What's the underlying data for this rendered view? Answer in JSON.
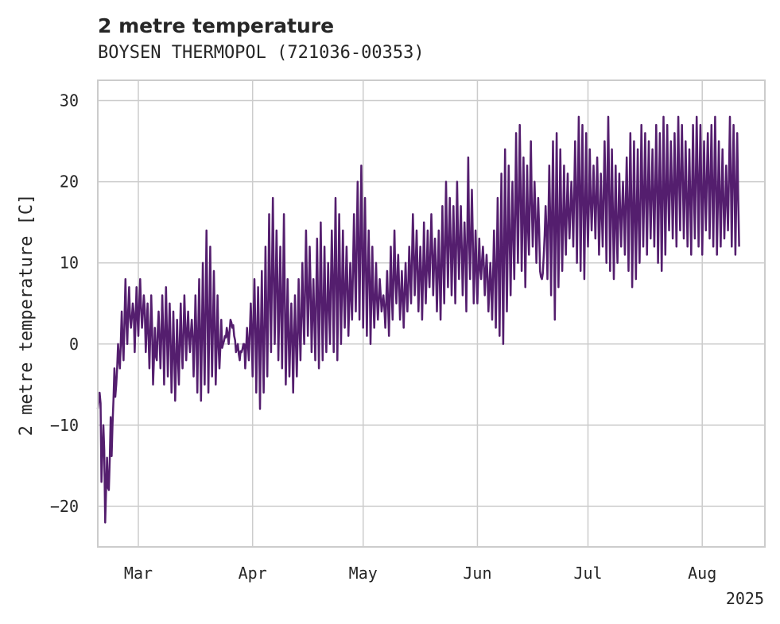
{
  "chart_data": {
    "type": "line",
    "title": "2 metre temperature",
    "subtitle": "BOYSEN THERMOPOL (721036-00353)",
    "ylabel": "2 metre temperature [C]",
    "xlabel": "",
    "ylim": [
      -25,
      32.5
    ],
    "xlim": [
      "2025-02-18",
      "2025-08-18"
    ],
    "y_ticks": [
      30,
      20,
      10,
      0,
      -10,
      -20
    ],
    "y_tick_labels": [
      "30",
      "20",
      "10",
      "0",
      "−10",
      "−20"
    ],
    "x_ticks": [
      "2025-03-01",
      "2025-04-01",
      "2025-05-01",
      "2025-06-01",
      "2025-07-01",
      "2025-08-01"
    ],
    "x_tick_labels": [
      "Mar",
      "Apr",
      "May",
      "Jun",
      "Jul",
      "Aug"
    ],
    "x_offset_label": "2025",
    "grid": true,
    "legend": "none",
    "series": [
      {
        "color": "#541e6e",
        "x": [
          "2025-02-18",
          "2025-02-19",
          "2025-02-20",
          "2025-02-21",
          "2025-02-22",
          "2025-02-23",
          "2025-02-24",
          "2025-02-25",
          "2025-02-26",
          "2025-02-27",
          "2025-02-28",
          "2025-03-01",
          "2025-03-02",
          "2025-03-03",
          "2025-03-04",
          "2025-03-05",
          "2025-03-06",
          "2025-03-07",
          "2025-03-08",
          "2025-03-09",
          "2025-03-10",
          "2025-03-11",
          "2025-03-12",
          "2025-03-13",
          "2025-03-14",
          "2025-03-15",
          "2025-03-16",
          "2025-03-17",
          "2025-03-18",
          "2025-03-19",
          "2025-03-20",
          "2025-03-21",
          "2025-03-22",
          "2025-03-23",
          "2025-03-24",
          "2025-03-25",
          "2025-03-26",
          "2025-03-27",
          "2025-03-28",
          "2025-03-29",
          "2025-03-30",
          "2025-03-31",
          "2025-04-01",
          "2025-04-02",
          "2025-04-03",
          "2025-04-04",
          "2025-04-05",
          "2025-04-06",
          "2025-04-07",
          "2025-04-08",
          "2025-04-09",
          "2025-04-10",
          "2025-04-11",
          "2025-04-12",
          "2025-04-13",
          "2025-04-14",
          "2025-04-15",
          "2025-04-16",
          "2025-04-17",
          "2025-04-18",
          "2025-04-19",
          "2025-04-20",
          "2025-04-21",
          "2025-04-22",
          "2025-04-23",
          "2025-04-24",
          "2025-04-25",
          "2025-04-26",
          "2025-04-27",
          "2025-04-28",
          "2025-04-29",
          "2025-04-30",
          "2025-05-01",
          "2025-05-02",
          "2025-05-03",
          "2025-05-04",
          "2025-05-05",
          "2025-05-06",
          "2025-05-07",
          "2025-05-08",
          "2025-05-09",
          "2025-05-10",
          "2025-05-11",
          "2025-05-12",
          "2025-05-13",
          "2025-05-14",
          "2025-05-15",
          "2025-05-16",
          "2025-05-17",
          "2025-05-18",
          "2025-05-19",
          "2025-05-20",
          "2025-05-21",
          "2025-05-22",
          "2025-05-23",
          "2025-05-24",
          "2025-05-25",
          "2025-05-26",
          "2025-05-27",
          "2025-05-28",
          "2025-05-29",
          "2025-05-30",
          "2025-05-31",
          "2025-06-01",
          "2025-06-02",
          "2025-06-03",
          "2025-06-04",
          "2025-06-05",
          "2025-06-06",
          "2025-06-07",
          "2025-06-08",
          "2025-06-09",
          "2025-06-10",
          "2025-06-11",
          "2025-06-12",
          "2025-06-13",
          "2025-06-14",
          "2025-06-15",
          "2025-06-16",
          "2025-06-17",
          "2025-06-18",
          "2025-06-19",
          "2025-06-20",
          "2025-06-21",
          "2025-06-22",
          "2025-06-23",
          "2025-06-24",
          "2025-06-25",
          "2025-06-26",
          "2025-06-27",
          "2025-06-28",
          "2025-06-29",
          "2025-06-30",
          "2025-07-01",
          "2025-07-02",
          "2025-07-03",
          "2025-07-04",
          "2025-07-05",
          "2025-07-06",
          "2025-07-07",
          "2025-07-08",
          "2025-07-09",
          "2025-07-10",
          "2025-07-11",
          "2025-07-12",
          "2025-07-13",
          "2025-07-14",
          "2025-07-15",
          "2025-07-16",
          "2025-07-17",
          "2025-07-18",
          "2025-07-19",
          "2025-07-20",
          "2025-07-21",
          "2025-07-22",
          "2025-07-23",
          "2025-07-24",
          "2025-07-25",
          "2025-07-26",
          "2025-07-27",
          "2025-07-28",
          "2025-07-29",
          "2025-07-30",
          "2025-07-31",
          "2025-08-01",
          "2025-08-02",
          "2025-08-03",
          "2025-08-04",
          "2025-08-05",
          "2025-08-06",
          "2025-08-07",
          "2025-08-08",
          "2025-08-09",
          "2025-08-10",
          "2025-08-11",
          "2025-08-12",
          "2025-08-13",
          "2025-08-14",
          "2025-08-15",
          "2025-08-16",
          "2025-08-17"
        ],
        "min": [
          -8,
          -17,
          -22,
          -18,
          -10,
          -5,
          -3,
          -2,
          0,
          2,
          -1,
          1,
          2,
          -1,
          -3,
          -5,
          -2,
          -3,
          -5,
          -4,
          -6,
          -7,
          -5,
          -3,
          -2,
          -1,
          -4,
          -6,
          -7,
          -5,
          -6,
          -4,
          -5,
          -3,
          0,
          2,
          3,
          1,
          0,
          -1,
          -3,
          -2,
          -4,
          -6,
          -8,
          -6,
          -4,
          -1,
          0,
          -2,
          -3,
          -5,
          -4,
          -6,
          -4,
          -2,
          0,
          1,
          -1,
          -2,
          -3,
          -2,
          -1,
          0,
          -1,
          -2,
          0,
          2,
          1,
          3,
          4,
          3,
          2,
          1,
          0,
          2,
          3,
          4,
          2,
          1,
          3,
          5,
          3,
          2,
          4,
          5,
          6,
          4,
          3,
          5,
          7,
          6,
          4,
          3,
          5,
          7,
          6,
          5,
          8,
          6,
          4,
          8,
          5,
          5,
          8,
          6,
          4,
          3,
          2,
          1,
          0,
          4,
          6,
          8,
          10,
          9,
          7,
          11,
          12,
          10,
          9,
          11,
          8,
          6,
          3,
          7,
          9,
          11,
          13,
          12,
          10,
          9,
          8,
          12,
          14,
          13,
          11,
          12,
          10,
          9,
          8,
          10,
          12,
          11,
          9,
          7,
          8,
          10,
          12,
          11,
          13,
          12,
          10,
          9,
          11,
          14,
          13,
          12,
          14,
          13,
          12,
          11,
          13,
          12,
          11,
          14,
          13,
          12,
          11,
          12,
          13,
          14,
          12,
          11,
          12,
          13,
          12,
          11
        ],
        "max": [
          -6,
          -10,
          -14,
          -9,
          -3,
          0,
          4,
          8,
          7,
          5,
          7,
          8,
          6,
          5,
          6,
          2,
          4,
          6,
          7,
          5,
          4,
          3,
          5,
          6,
          4,
          3,
          6,
          8,
          10,
          14,
          12,
          9,
          6,
          3,
          1,
          0,
          2,
          -1,
          -2,
          0,
          2,
          5,
          8,
          7,
          9,
          12,
          16,
          18,
          14,
          12,
          16,
          8,
          5,
          6,
          8,
          10,
          14,
          12,
          8,
          13,
          15,
          12,
          10,
          14,
          18,
          16,
          14,
          12,
          10,
          16,
          20,
          22,
          18,
          14,
          12,
          10,
          8,
          6,
          9,
          12,
          14,
          11,
          9,
          10,
          12,
          16,
          14,
          12,
          15,
          14,
          16,
          13,
          14,
          17,
          20,
          18,
          17,
          20,
          17,
          15,
          23,
          19,
          14,
          13,
          12,
          11,
          10,
          14,
          18,
          21,
          24,
          22,
          20,
          26,
          27,
          23,
          22,
          25,
          20,
          18,
          8,
          17,
          22,
          25,
          26,
          24,
          22,
          21,
          20,
          25,
          28,
          27,
          26,
          24,
          22,
          23,
          21,
          25,
          28,
          24,
          22,
          21,
          20,
          23,
          26,
          25,
          24,
          27,
          26,
          25,
          24,
          27,
          26,
          28,
          27,
          25,
          26,
          28,
          27,
          25,
          24,
          27,
          28,
          27,
          25,
          26,
          27,
          28,
          25,
          24,
          22,
          28,
          27,
          26
        ]
      }
    ]
  }
}
